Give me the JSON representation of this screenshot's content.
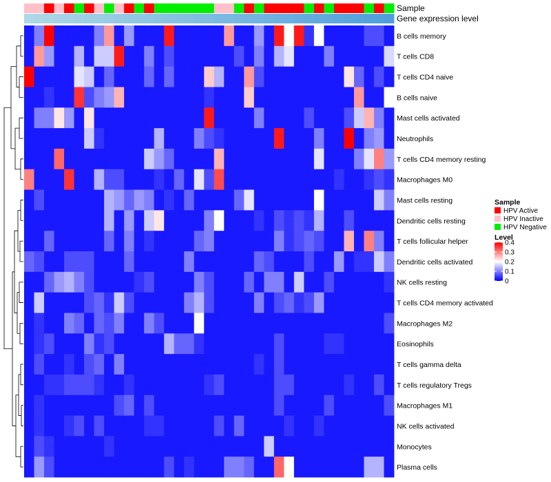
{
  "chart_data": {
    "type": "heatmap",
    "title": "",
    "rows": [
      "B cells memory",
      "T cells CD8",
      "T cells CD4 naive",
      "B cells naive",
      "Mast cells activated",
      "Neutrophils",
      "T cells CD4 memory resting",
      "Macrophages M0",
      "Mast cells resting",
      "Dendritic cells resting",
      "T cells follicular helper",
      "Dendritic cells activated",
      "NK cells resting",
      "T cells CD4 memory activated",
      "Macrophages M2",
      "Eosinophils",
      "T cells gamma delta",
      "T cells regulatory  Tregs",
      "Macrophages M1",
      "NK cells activated",
      "Monocytes",
      "Plasma cells"
    ],
    "column_annotations": [
      {
        "name": "Sample",
        "values": [
          "HPV Inactive",
          "HPV Inactive",
          "HPV Active",
          "HPV Inactive",
          "HPV Active",
          "HPV Negative",
          "HPV Active",
          "HPV Inactive",
          "HPV Negative",
          "HPV Inactive",
          "HPV Active",
          "HPV Negative",
          "HPV Active",
          "HPV Negative",
          "HPV Negative",
          "HPV Negative",
          "HPV Negative",
          "HPV Negative",
          "HPV Negative",
          "HPV Inactive",
          "HPV Inactive",
          "HPV Negative",
          "HPV Active",
          "HPV Negative",
          "HPV Active",
          "HPV Active",
          "HPV Active",
          "HPV Active",
          "HPV Negative",
          "HPV Active",
          "HPV Negative",
          "HPV Active",
          "HPV Active",
          "HPV Active",
          "HPV Negative",
          "HPV Active",
          "HPV Negative"
        ]
      },
      {
        "name": "Gene expression level",
        "values": [
          0.12,
          0.13,
          0.14,
          0.15,
          0.16,
          0.17,
          0.18,
          0.19,
          0.2,
          0.21,
          0.22,
          0.23,
          0.24,
          0.25,
          0.26,
          0.27,
          0.28,
          0.29,
          0.3,
          0.31,
          0.32,
          0.33,
          0.34,
          0.35,
          0.36,
          0.37,
          0.38,
          0.39,
          0.4,
          0.41,
          0.42,
          0.43,
          0.44,
          0.45,
          0.46,
          0.47,
          0.48
        ]
      }
    ],
    "values": [
      [
        0.02,
        0.1,
        0.4,
        0.02,
        0.02,
        0.02,
        0.02,
        0.1,
        0.28,
        0.02,
        0.12,
        0.02,
        0.02,
        0.02,
        0.38,
        0.02,
        0.02,
        0.02,
        0.02,
        0.02,
        0.28,
        0.02,
        0.02,
        0.12,
        0.02,
        0.38,
        0.2,
        0.38,
        0.04,
        0.2,
        0.02,
        0.02,
        0.02,
        0.02,
        0.06,
        0.06,
        0.02
      ],
      [
        0.02,
        0.28,
        0.12,
        0.02,
        0.02,
        0.14,
        0.02,
        0.16,
        0.16,
        0.38,
        0.02,
        0.02,
        0.1,
        0.02,
        0.06,
        0.02,
        0.02,
        0.02,
        0.02,
        0.02,
        0.02,
        0.06,
        0.02,
        0.1,
        0.02,
        0.14,
        0.18,
        0.02,
        0.02,
        0.02,
        0.1,
        0.02,
        0.02,
        0.02,
        0.02,
        0.02,
        0.17
      ],
      [
        0.4,
        0.02,
        0.02,
        0.02,
        0.02,
        0.18,
        0.16,
        0.02,
        0.08,
        0.02,
        0.02,
        0.02,
        0.08,
        0.02,
        0.08,
        0.02,
        0.02,
        0.02,
        0.24,
        0.14,
        0.02,
        0.02,
        0.28,
        0.06,
        0.02,
        0.02,
        0.02,
        0.02,
        0.02,
        0.02,
        0.02,
        0.02,
        0.22,
        0.08,
        0.02,
        0.06,
        0.02
      ],
      [
        0.02,
        0.02,
        0.04,
        0.02,
        0.02,
        0.36,
        0.06,
        0.1,
        0.12,
        0.26,
        0.02,
        0.02,
        0.02,
        0.02,
        0.02,
        0.02,
        0.02,
        0.02,
        0.04,
        0.02,
        0.02,
        0.02,
        0.24,
        0.02,
        0.02,
        0.02,
        0.02,
        0.02,
        0.02,
        0.02,
        0.02,
        0.02,
        0.02,
        0.28,
        0.02,
        0.02,
        0.2
      ],
      [
        0.02,
        0.1,
        0.1,
        0.22,
        0.12,
        0.02,
        0.22,
        0.02,
        0.02,
        0.02,
        0.02,
        0.02,
        0.02,
        0.02,
        0.02,
        0.02,
        0.02,
        0.02,
        0.38,
        0.02,
        0.02,
        0.02,
        0.02,
        0.1,
        0.02,
        0.02,
        0.02,
        0.02,
        0.06,
        0.02,
        0.02,
        0.02,
        0.06,
        0.16,
        0.26,
        0.1,
        0.02
      ],
      [
        0.02,
        0.02,
        0.02,
        0.02,
        0.02,
        0.02,
        0.16,
        0.04,
        0.02,
        0.02,
        0.02,
        0.02,
        0.02,
        0.14,
        0.02,
        0.02,
        0.02,
        0.1,
        0.06,
        0.04,
        0.02,
        0.02,
        0.02,
        0.02,
        0.02,
        0.38,
        0.02,
        0.02,
        0.02,
        0.1,
        0.02,
        0.02,
        0.4,
        0.02,
        0.1,
        0.12,
        0.02
      ],
      [
        0.02,
        0.02,
        0.02,
        0.32,
        0.02,
        0.02,
        0.02,
        0.02,
        0.02,
        0.02,
        0.02,
        0.02,
        0.16,
        0.12,
        0.08,
        0.02,
        0.02,
        0.02,
        0.02,
        0.26,
        0.02,
        0.02,
        0.02,
        0.02,
        0.02,
        0.02,
        0.02,
        0.02,
        0.02,
        0.18,
        0.02,
        0.02,
        0.02,
        0.1,
        0.18,
        0.3,
        0.12
      ],
      [
        0.3,
        0.02,
        0.02,
        0.02,
        0.36,
        0.02,
        0.02,
        0.14,
        0.06,
        0.06,
        0.02,
        0.02,
        0.02,
        0.04,
        0.02,
        0.08,
        0.02,
        0.18,
        0.06,
        0.34,
        0.02,
        0.02,
        0.02,
        0.02,
        0.02,
        0.02,
        0.02,
        0.02,
        0.02,
        0.02,
        0.02,
        0.04,
        0.02,
        0.02,
        0.04,
        0.06,
        0.04
      ],
      [
        0.02,
        0.06,
        0.02,
        0.02,
        0.02,
        0.02,
        0.02,
        0.02,
        0.14,
        0.12,
        0.08,
        0.12,
        0.1,
        0.02,
        0.04,
        0.02,
        0.08,
        0.02,
        0.02,
        0.02,
        0.02,
        0.08,
        0.18,
        0.02,
        0.02,
        0.02,
        0.02,
        0.02,
        0.02,
        0.2,
        0.02,
        0.02,
        0.02,
        0.02,
        0.02,
        0.16,
        0.1
      ],
      [
        0.02,
        0.02,
        0.02,
        0.02,
        0.02,
        0.02,
        0.02,
        0.02,
        0.14,
        0.02,
        0.12,
        0.02,
        0.16,
        0.22,
        0.02,
        0.02,
        0.02,
        0.02,
        0.1,
        0.2,
        0.02,
        0.02,
        0.02,
        0.04,
        0.02,
        0.06,
        0.04,
        0.06,
        0.04,
        0.14,
        0.02,
        0.02,
        0.06,
        0.02,
        0.02,
        0.02,
        0.02
      ],
      [
        0.02,
        0.02,
        0.08,
        0.02,
        0.02,
        0.02,
        0.02,
        0.02,
        0.08,
        0.02,
        0.1,
        0.02,
        0.04,
        0.02,
        0.02,
        0.02,
        0.02,
        0.08,
        0.1,
        0.02,
        0.02,
        0.02,
        0.02,
        0.02,
        0.02,
        0.1,
        0.04,
        0.06,
        0.08,
        0.06,
        0.02,
        0.02,
        0.26,
        0.02,
        0.3,
        0.1,
        0.02
      ],
      [
        0.08,
        0.06,
        0.02,
        0.02,
        0.06,
        0.06,
        0.06,
        0.02,
        0.02,
        0.02,
        0.08,
        0.02,
        0.02,
        0.02,
        0.02,
        0.02,
        0.1,
        0.02,
        0.02,
        0.02,
        0.02,
        0.02,
        0.02,
        0.08,
        0.06,
        0.02,
        0.02,
        0.02,
        0.06,
        0.02,
        0.02,
        0.12,
        0.02,
        0.04,
        0.04,
        0.16,
        0.1
      ],
      [
        0.02,
        0.02,
        0.08,
        0.12,
        0.14,
        0.1,
        0.06,
        0.02,
        0.02,
        0.02,
        0.02,
        0.04,
        0.06,
        0.02,
        0.02,
        0.02,
        0.02,
        0.1,
        0.06,
        0.02,
        0.02,
        0.02,
        0.08,
        0.02,
        0.1,
        0.1,
        0.02,
        0.16,
        0.02,
        0.02,
        0.06,
        0.02,
        0.02,
        0.02,
        0.02,
        0.02,
        0.04
      ],
      [
        0.02,
        0.16,
        0.02,
        0.02,
        0.02,
        0.02,
        0.06,
        0.08,
        0.04,
        0.16,
        0.06,
        0.02,
        0.02,
        0.02,
        0.02,
        0.02,
        0.1,
        0.14,
        0.06,
        0.02,
        0.02,
        0.02,
        0.02,
        0.1,
        0.02,
        0.06,
        0.08,
        0.04,
        0.06,
        0.12,
        0.02,
        0.02,
        0.02,
        0.02,
        0.02,
        0.02,
        0.02
      ],
      [
        0.02,
        0.04,
        0.02,
        0.02,
        0.1,
        0.08,
        0.02,
        0.08,
        0.06,
        0.1,
        0.02,
        0.02,
        0.1,
        0.06,
        0.02,
        0.02,
        0.02,
        0.2,
        0.02,
        0.02,
        0.02,
        0.02,
        0.02,
        0.02,
        0.02,
        0.02,
        0.02,
        0.02,
        0.02,
        0.02,
        0.02,
        0.02,
        0.02,
        0.02,
        0.02,
        0.02,
        0.06
      ],
      [
        0.02,
        0.04,
        0.06,
        0.02,
        0.02,
        0.02,
        0.1,
        0.04,
        0.06,
        0.02,
        0.02,
        0.02,
        0.02,
        0.02,
        0.14,
        0.08,
        0.08,
        0.04,
        0.02,
        0.02,
        0.02,
        0.02,
        0.02,
        0.02,
        0.02,
        0.06,
        0.02,
        0.02,
        0.02,
        0.02,
        0.04,
        0.04,
        0.02,
        0.02,
        0.02,
        0.02,
        0.02
      ],
      [
        0.02,
        0.06,
        0.02,
        0.02,
        0.04,
        0.02,
        0.06,
        0.08,
        0.02,
        0.1,
        0.02,
        0.02,
        0.02,
        0.02,
        0.02,
        0.02,
        0.02,
        0.02,
        0.02,
        0.02,
        0.02,
        0.02,
        0.02,
        0.04,
        0.02,
        0.06,
        0.02,
        0.02,
        0.02,
        0.02,
        0.02,
        0.02,
        0.02,
        0.02,
        0.02,
        0.02,
        0.02
      ],
      [
        0.02,
        0.02,
        0.04,
        0.04,
        0.06,
        0.06,
        0.06,
        0.04,
        0.02,
        0.02,
        0.04,
        0.02,
        0.02,
        0.02,
        0.02,
        0.02,
        0.02,
        0.02,
        0.04,
        0.06,
        0.02,
        0.02,
        0.02,
        0.02,
        0.02,
        0.06,
        0.06,
        0.02,
        0.02,
        0.02,
        0.02,
        0.02,
        0.04,
        0.02,
        0.02,
        0.06,
        0.02
      ],
      [
        0.02,
        0.04,
        0.02,
        0.02,
        0.02,
        0.02,
        0.02,
        0.02,
        0.02,
        0.06,
        0.08,
        0.02,
        0.06,
        0.02,
        0.02,
        0.02,
        0.02,
        0.02,
        0.02,
        0.02,
        0.02,
        0.02,
        0.02,
        0.02,
        0.02,
        0.06,
        0.02,
        0.02,
        0.02,
        0.02,
        0.06,
        0.02,
        0.02,
        0.02,
        0.02,
        0.02,
        0.06
      ],
      [
        0.02,
        0.04,
        0.02,
        0.02,
        0.04,
        0.06,
        0.02,
        0.06,
        0.02,
        0.02,
        0.02,
        0.02,
        0.04,
        0.04,
        0.02,
        0.02,
        0.02,
        0.02,
        0.02,
        0.06,
        0.02,
        0.08,
        0.02,
        0.02,
        0.02,
        0.02,
        0.04,
        0.02,
        0.02,
        0.04,
        0.02,
        0.02,
        0.02,
        0.02,
        0.02,
        0.02,
        0.02
      ],
      [
        0.02,
        0.06,
        0.04,
        0.02,
        0.02,
        0.02,
        0.02,
        0.02,
        0.04,
        0.02,
        0.02,
        0.02,
        0.02,
        0.02,
        0.02,
        0.02,
        0.02,
        0.02,
        0.02,
        0.02,
        0.02,
        0.02,
        0.02,
        0.02,
        0.16,
        0.02,
        0.02,
        0.02,
        0.02,
        0.02,
        0.02,
        0.02,
        0.02,
        0.02,
        0.02,
        0.02,
        0.02
      ],
      [
        0.02,
        0.12,
        0.06,
        0.02,
        0.02,
        0.02,
        0.02,
        0.02,
        0.02,
        0.02,
        0.02,
        0.02,
        0.02,
        0.02,
        0.06,
        0.02,
        0.04,
        0.02,
        0.02,
        0.02,
        0.1,
        0.1,
        0.08,
        0.02,
        0.02,
        0.32,
        0.2,
        0.02,
        0.02,
        0.02,
        0.02,
        0.02,
        0.02,
        0.02,
        0.14,
        0.14,
        0.02
      ]
    ],
    "color_scale": {
      "name": "Level",
      "min": 0,
      "max": 0.4,
      "ticks": [
        0,
        0.1,
        0.2,
        0.3,
        0.4
      ],
      "low": "#0000ff",
      "mid": "#ffffff",
      "high": "#ff0000"
    },
    "legend": {
      "title": "Sample",
      "position": "right",
      "entries": [
        {
          "label": "HPV Active",
          "color": "#ff0000"
        },
        {
          "label": "HPV Inactive",
          "color": "#ffc0cb"
        },
        {
          "label": "HPV Negative",
          "color": "#00ee00"
        }
      ]
    },
    "gene_expression_colors": {
      "low": "#add8e6",
      "high": "#4f9fdc"
    }
  }
}
